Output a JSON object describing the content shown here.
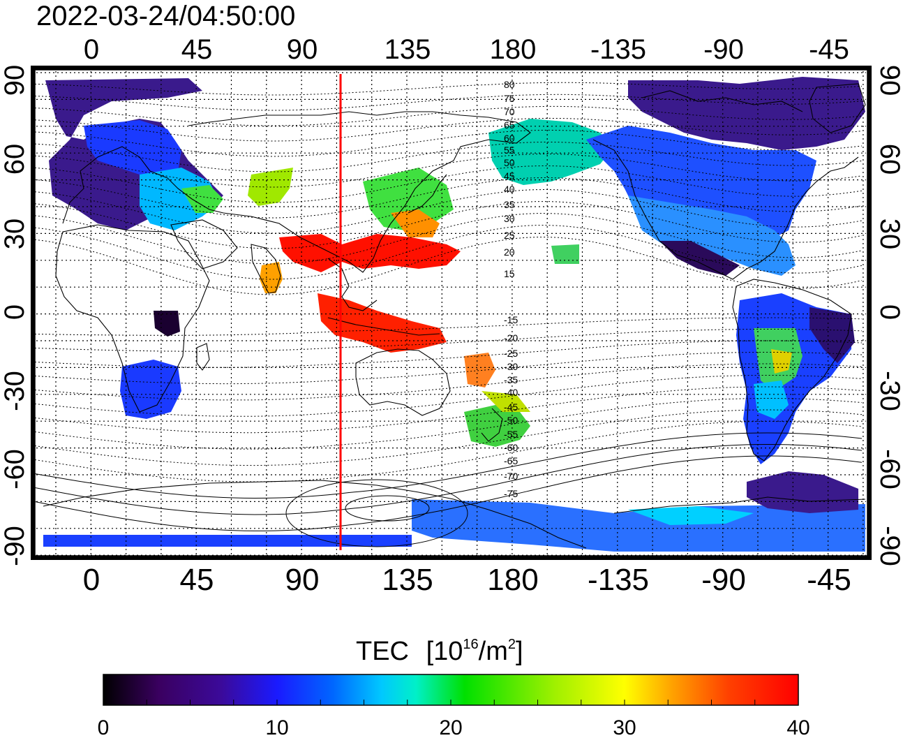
{
  "timestamp": "2022-03-24/04:50:00",
  "lon_ticks_top": [
    "0",
    "45",
    "90",
    "135",
    "180",
    "-135",
    "-90",
    "-45"
  ],
  "lon_ticks_bottom": [
    "0",
    "45",
    "90",
    "135",
    "180",
    "-135",
    "-90",
    "-45"
  ],
  "lat_ticks_left": [
    "90",
    "60",
    "30",
    "0",
    "-30",
    "-60",
    "-90"
  ],
  "lat_ticks_right": [
    "90",
    "60",
    "30",
    "0",
    "-30",
    "-60",
    "-90"
  ],
  "contour_labels_north": [
    "80",
    "75",
    "70",
    "65",
    "60",
    "55",
    "50",
    "45",
    "40",
    "35",
    "30",
    "25",
    "20",
    "15"
  ],
  "contour_labels_south": [
    "-15",
    "-20",
    "-25",
    "-30",
    "-35",
    "-40",
    "-45",
    "-50",
    "-55",
    "-60",
    "-65",
    "-70",
    "-75"
  ],
  "colorbar": {
    "title": "TEC",
    "unit_open": "[10",
    "unit_exp": "16",
    "unit_mid": "/m",
    "unit_exp2": "2",
    "unit_close": "]",
    "ticks": [
      "0",
      "10",
      "20",
      "30",
      "40"
    ],
    "min": 0,
    "max": 40
  },
  "colors": {
    "terminator_line": "#ff0000",
    "scale_stops": [
      "#000000",
      "#3a0060",
      "#3b0a9a",
      "#1a1aff",
      "#0066ff",
      "#00c8ff",
      "#00f0c8",
      "#00e000",
      "#a0f000",
      "#ffff00",
      "#ffa000",
      "#ff4000",
      "#ff0000"
    ]
  }
}
